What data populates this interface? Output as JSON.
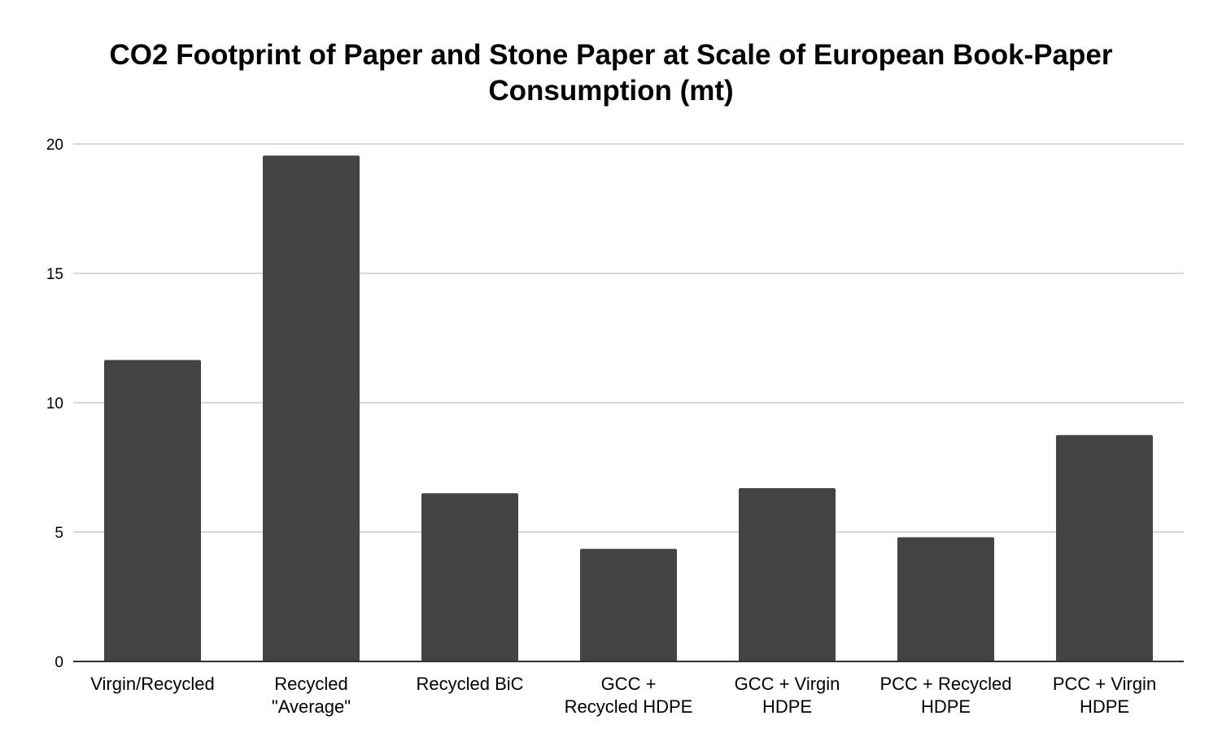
{
  "chart_data": {
    "type": "bar",
    "title_lines": [
      "CO2 Footprint of Paper and Stone Paper at Scale of European Book-Paper",
      "Consumption (mt)"
    ],
    "categories": [
      [
        "Virgin/Recycled"
      ],
      [
        "Recycled",
        "\"Average\""
      ],
      [
        "Recycled BiC"
      ],
      [
        "GCC +",
        "Recycled HDPE"
      ],
      [
        "GCC + Virgin",
        "HDPE"
      ],
      [
        "PCC + Recycled",
        "HDPE"
      ],
      [
        "PCC + Virgin",
        "HDPE"
      ]
    ],
    "values": [
      11.65,
      19.55,
      6.5,
      4.35,
      6.7,
      4.8,
      8.75
    ],
    "yticks": [
      "0",
      "5",
      "10",
      "15",
      "20"
    ],
    "ylim": [
      0,
      20
    ],
    "xlabel": "",
    "ylabel": "",
    "grid": true,
    "legend": "none",
    "bar_color": "#434343",
    "grid_color": "#cccccc",
    "axis_color": "#333333",
    "text_color": "#000000"
  }
}
